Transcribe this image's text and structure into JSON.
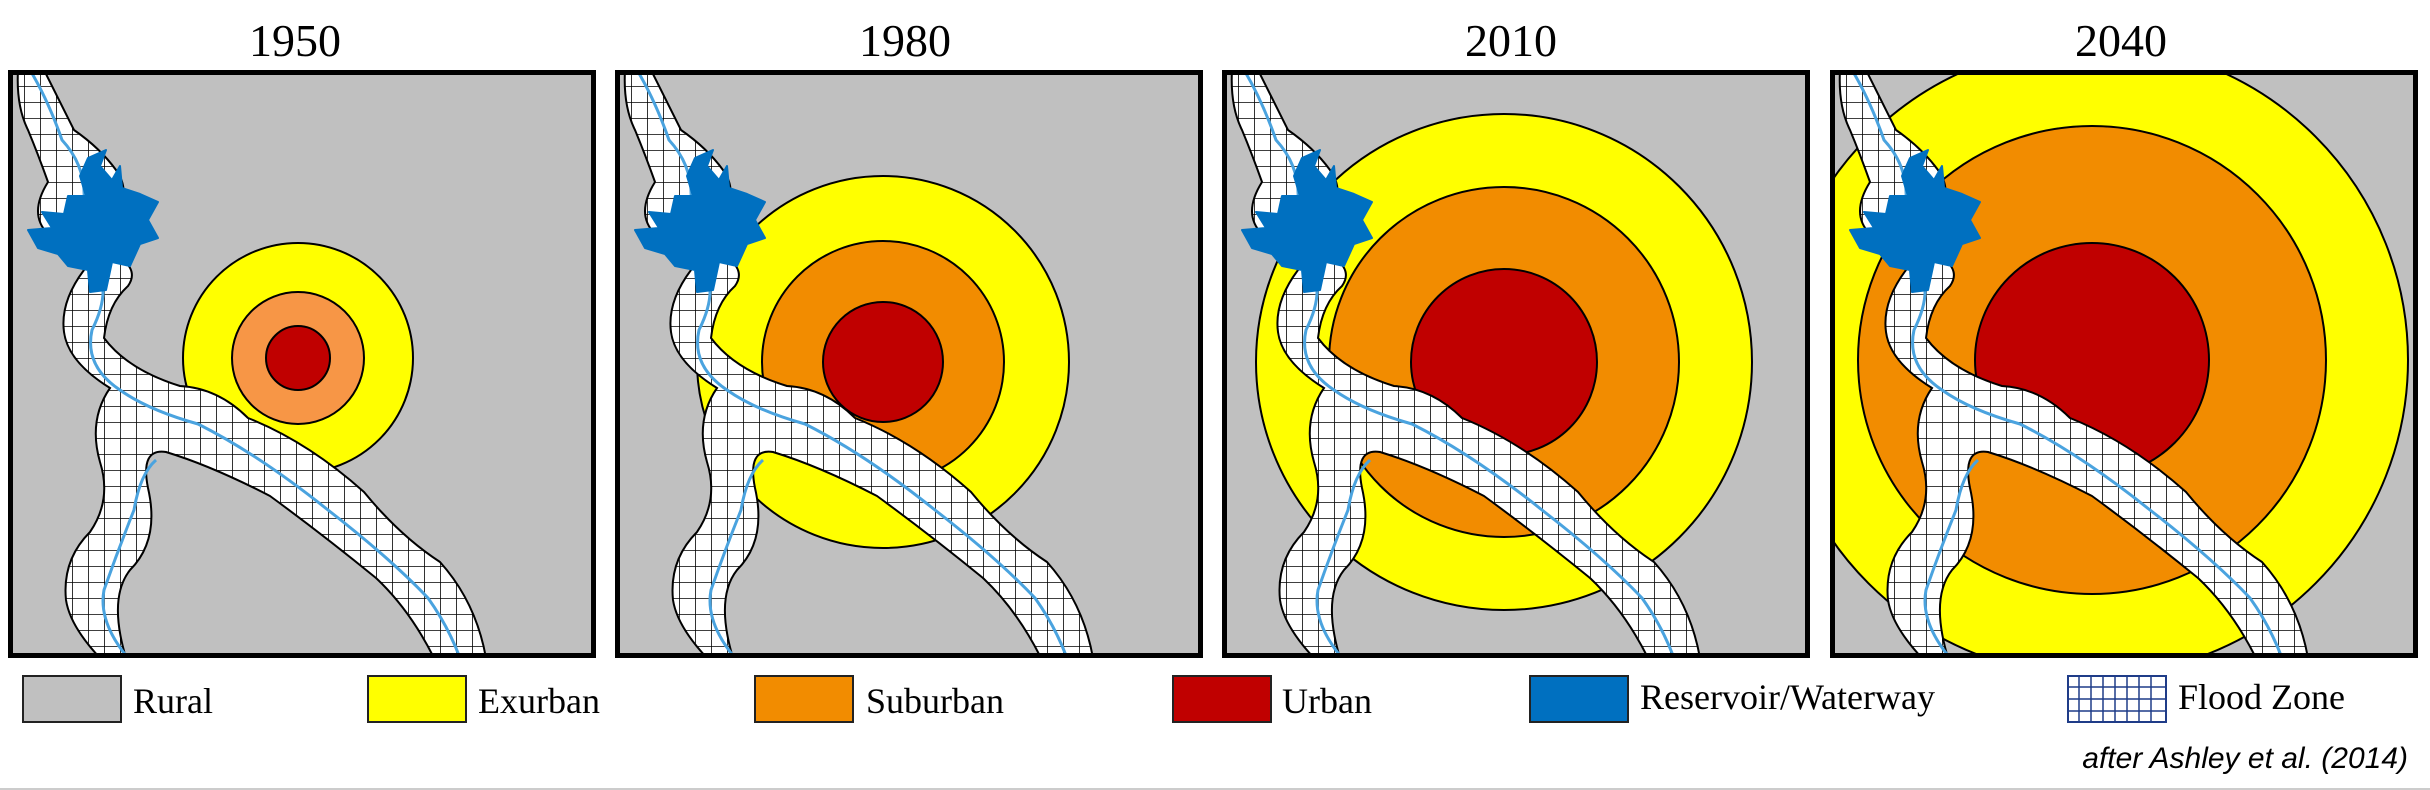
{
  "panels": [
    {
      "title": "1950",
      "radii": {
        "exurban": 115,
        "suburban": 66,
        "urban": 32
      }
    },
    {
      "title": "1980",
      "radii": {
        "exurban": 186,
        "suburban": 121,
        "urban": 60
      }
    },
    {
      "title": "2010",
      "radii": {
        "exurban": 248,
        "suburban": 175,
        "urban": 93
      }
    },
    {
      "title": "2040",
      "radii": {
        "exurban": 316,
        "suburban": 234,
        "urban": 117
      }
    }
  ],
  "legend": [
    {
      "label": "Rural",
      "color": "#c0c0c0",
      "type": "solid"
    },
    {
      "label": "Exurban",
      "color": "#ffff00",
      "type": "solid"
    },
    {
      "label": "Suburban",
      "color": "#f28c00",
      "type": "solid"
    },
    {
      "label": "Urban",
      "color": "#c00000",
      "type": "solid"
    },
    {
      "label": "Reservoir/Waterway",
      "color": "#0070c0",
      "type": "solid"
    },
    {
      "label": "Flood Zone",
      "color": "#1f3c88",
      "type": "grid"
    }
  ],
  "colors": {
    "rural": "#c0c0c0",
    "exurban": "#ffff00",
    "suburban": "#f28c00",
    "suburban_1950": "#f79646",
    "urban": "#c00000",
    "water": "#0070c0",
    "river": "#4aa3df",
    "flood_fill": "#ffffff",
    "flood_grid": "#000000"
  },
  "credit": "after Ashley et al. (2014)"
}
